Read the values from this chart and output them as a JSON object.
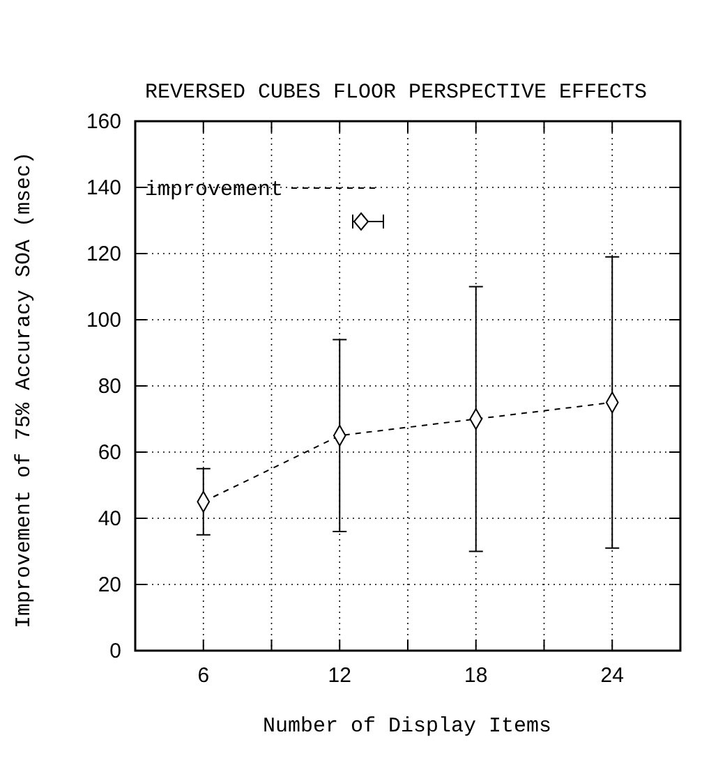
{
  "chart_data": {
    "type": "line",
    "title": "REVERSED CUBES FLOOR PERSPECTIVE EFFECTS",
    "xlabel": "Number of Display Items",
    "ylabel": "Improvement of 75% Accuracy SOA (msec)",
    "x": [
      6,
      12,
      18,
      24
    ],
    "series": [
      {
        "name": "improvement",
        "color": "#000000",
        "values": [
          45,
          65,
          70,
          75
        ],
        "errors": [
          [
            35,
            55
          ],
          [
            36,
            94
          ],
          [
            30,
            110
          ],
          [
            31,
            119
          ]
        ]
      }
    ],
    "xlim": [
      3,
      27
    ],
    "xticks": [
      {
        "value": 3,
        "label": null
      },
      6,
      {
        "value": 9,
        "label": null
      },
      12,
      {
        "value": 15,
        "label": null
      },
      18,
      {
        "value": 21,
        "label": null
      },
      24,
      {
        "value": 27,
        "label": null
      }
    ],
    "ylim": [
      0,
      160
    ],
    "yticks": [
      0,
      20,
      40,
      60,
      80,
      100,
      120,
      140,
      160
    ],
    "grid": true,
    "legend": "top left",
    "marker": "diamond",
    "line_style": "dashed"
  }
}
